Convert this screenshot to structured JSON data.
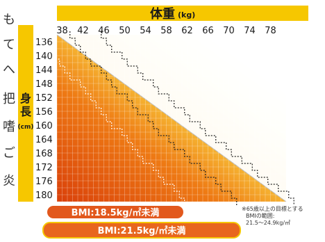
{
  "chart_data": {
    "type": "heatmap",
    "title": "体重",
    "title_unit": "(kg)",
    "side_label": "身長",
    "side_label_unit": "(cm)",
    "x_ticks": [
      38,
      42,
      46,
      50,
      54,
      58,
      62,
      66,
      70,
      74,
      78
    ],
    "y_ticks": [
      136,
      140,
      144,
      148,
      152,
      156,
      160,
      164,
      168,
      172,
      176,
      180
    ],
    "bmi_thresholds": [
      18.5,
      21.5,
      24.9
    ],
    "colors": {
      "header": "#f6c700",
      "side": "#f6c700",
      "bmi_18_5": "#e2581d",
      "bmi_21_5": "#e8661e",
      "bmi_21_5_border": "#f6c700"
    },
    "legend": [
      {
        "label": "BMI:18.5kg/㎡未満"
      },
      {
        "label": "BMI:21.5kg/㎡未満"
      }
    ],
    "note": [
      "※65歳以上の目標とする",
      "BMIの範囲:",
      "21.5～24.9kg/㎡"
    ]
  },
  "side_text": [
    "も",
    "て",
    "へ",
    "",
    "把",
    "嗜",
    "ご",
    "炎"
  ]
}
